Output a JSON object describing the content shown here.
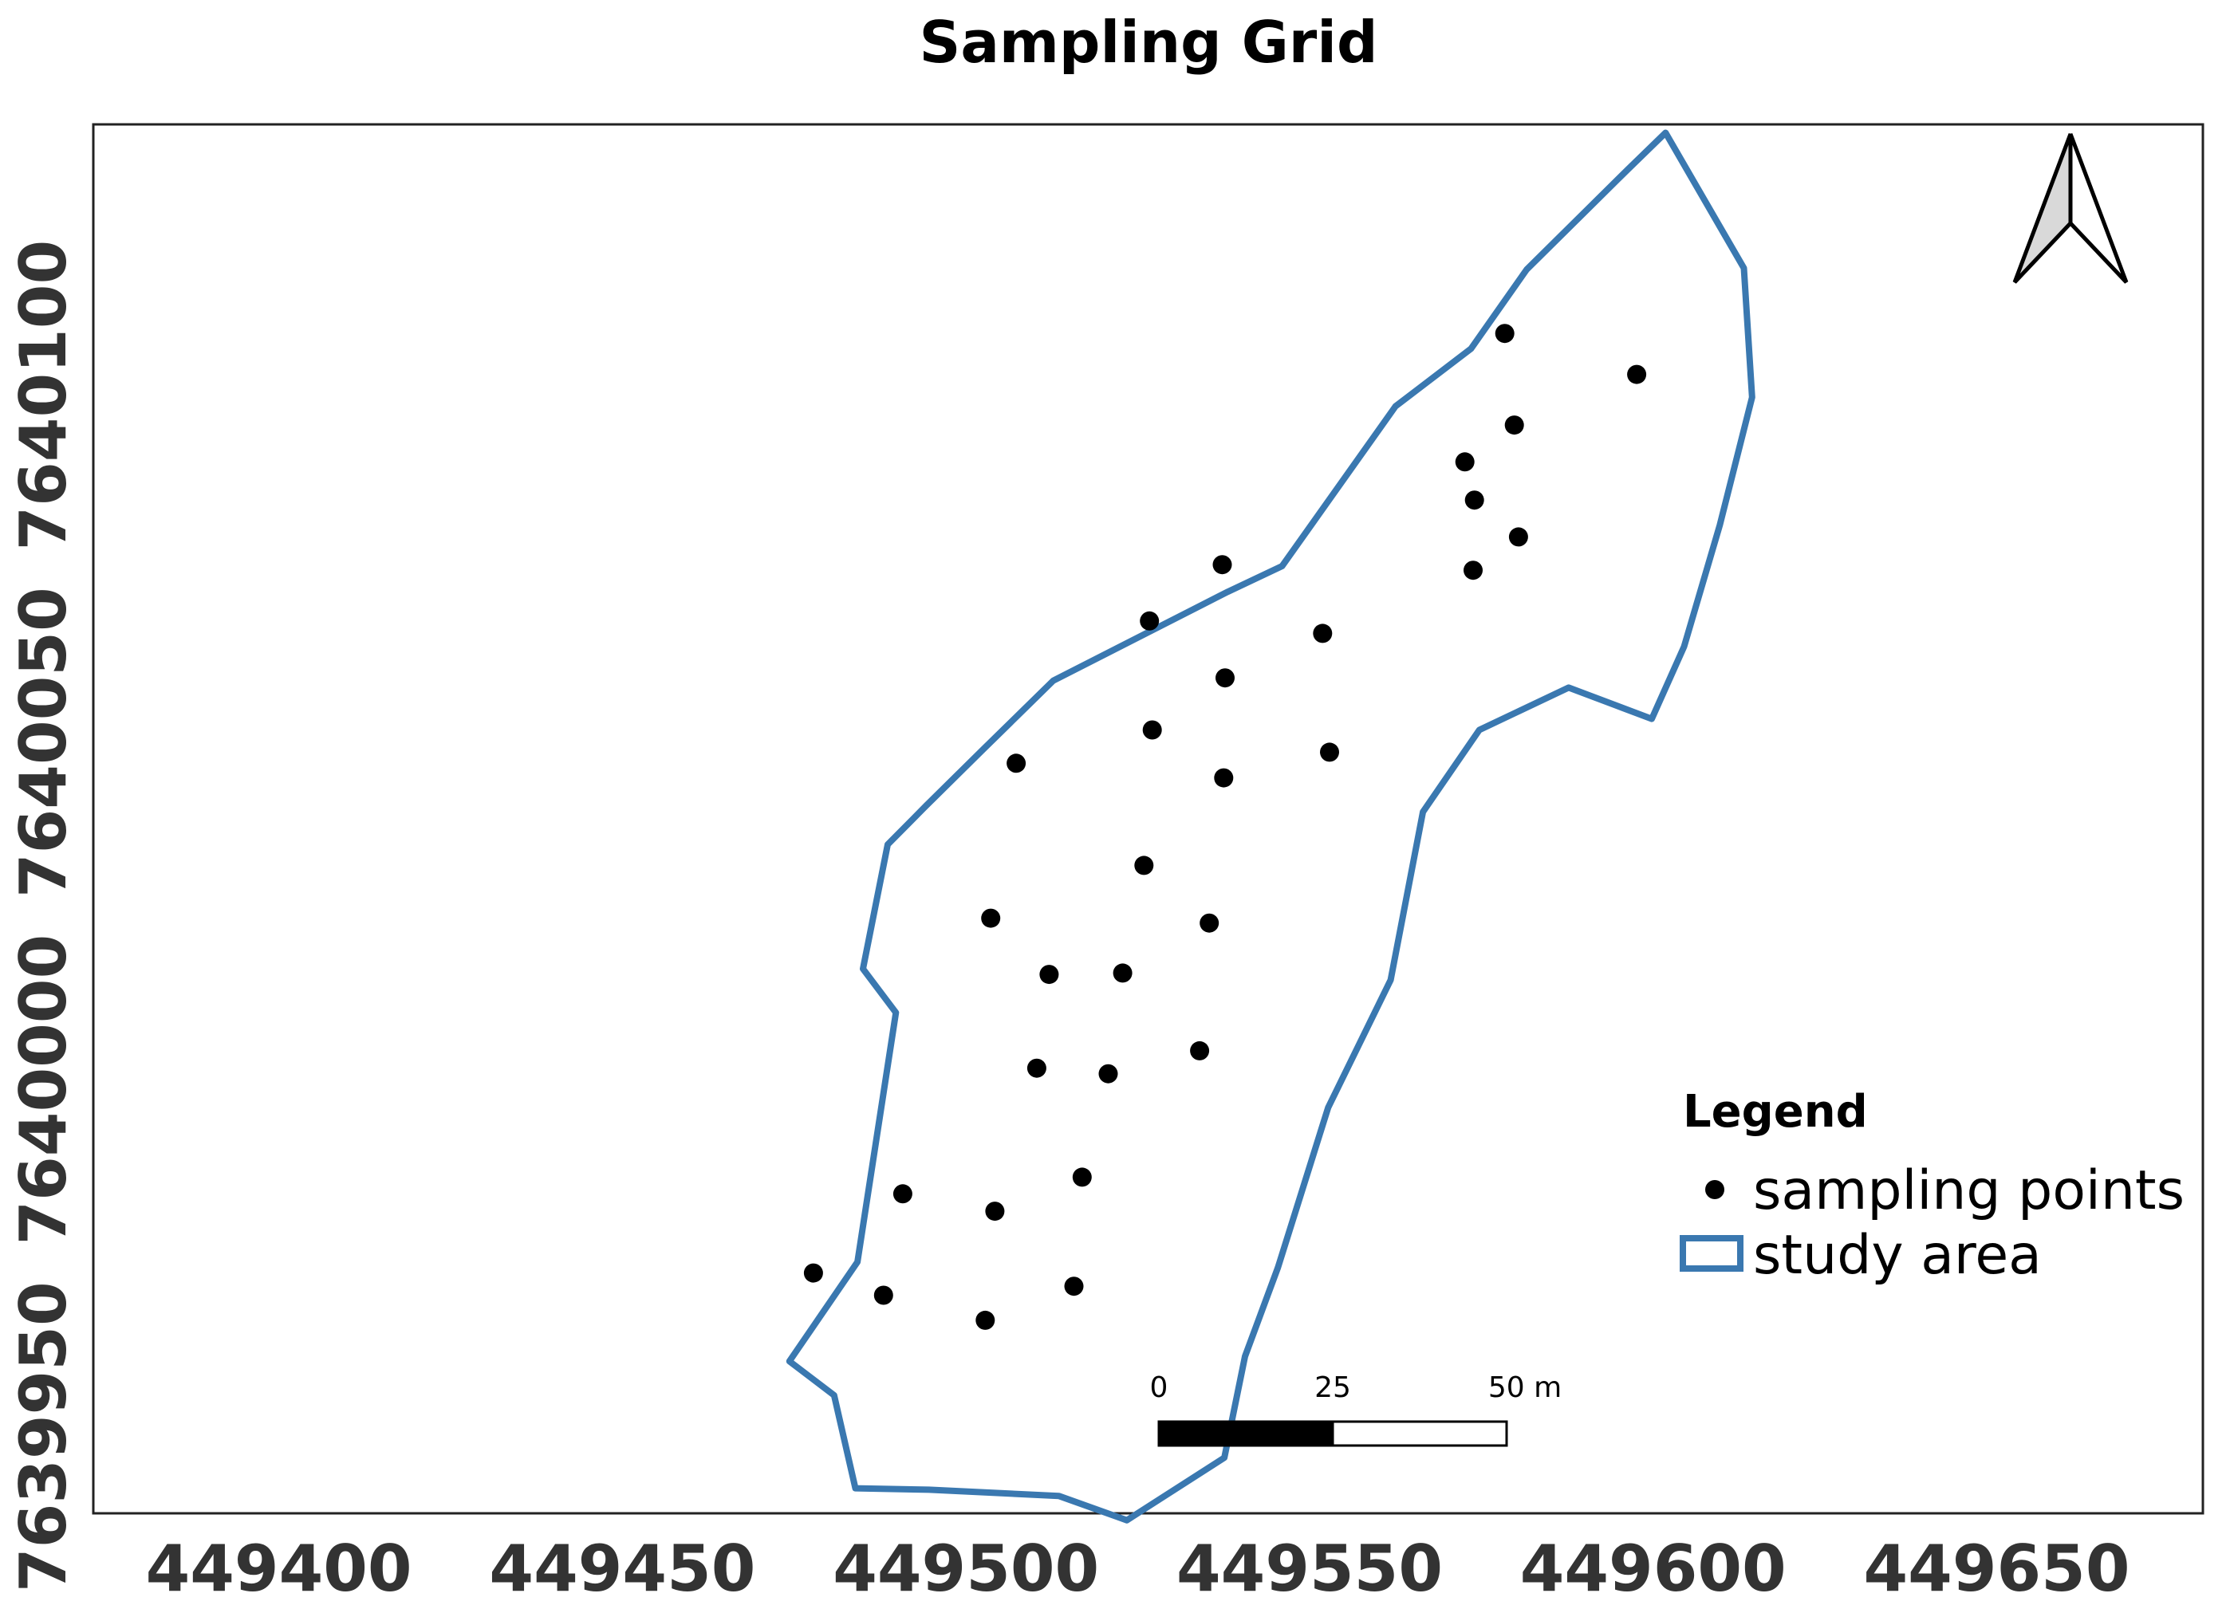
{
  "map": {
    "title": "Sampling Grid",
    "crs_extent": {
      "x_min": 449373,
      "x_max": 449680,
      "y_min": 7639939,
      "y_max": 7640139
    },
    "x_ticks": [
      {
        "value": 449400,
        "label": "449400"
      },
      {
        "value": 449450,
        "label": "449450"
      },
      {
        "value": 449500,
        "label": "449500"
      },
      {
        "value": 449550,
        "label": "449550"
      },
      {
        "value": 449600,
        "label": "449600"
      },
      {
        "value": 449650,
        "label": "449650"
      }
    ],
    "y_ticks": [
      {
        "value": 7639950,
        "label": "7639950"
      },
      {
        "value": 7640000,
        "label": "7640000"
      },
      {
        "value": 7640050,
        "label": "7640050"
      },
      {
        "value": 7640100,
        "label": "7640100"
      }
    ],
    "study_area": {
      "color": "#3a78b0",
      "boundary": [
        [
          449601.8,
          7640137.8
        ],
        [
          449613.2,
          7640118.3
        ],
        [
          449614.4,
          7640099.7
        ],
        [
          449609.7,
          7640081.3
        ],
        [
          449604.5,
          7640063.8
        ],
        [
          449599.8,
          7640053.4
        ],
        [
          449587.7,
          7640057.9
        ],
        [
          449574.7,
          7640051.8
        ],
        [
          449566.5,
          7640040.0
        ],
        [
          449561.8,
          7640015.8
        ],
        [
          449552.7,
          7639997.4
        ],
        [
          449545.4,
          7639974.4
        ],
        [
          449540.6,
          7639961.6
        ],
        [
          449537.6,
          7639947.0
        ],
        [
          449523.4,
          7639938.0
        ],
        [
          449513.5,
          7639941.5
        ],
        [
          449494.6,
          7639942.4
        ],
        [
          449483.9,
          7639942.6
        ],
        [
          449480.8,
          7639956.0
        ],
        [
          449474.3,
          7639960.9
        ],
        [
          449484.2,
          7639975.2
        ],
        [
          449489.8,
          7640011.1
        ],
        [
          449485.0,
          7640017.4
        ],
        [
          449488.6,
          7640035.3
        ],
        [
          449494.2,
          7640040.9
        ],
        [
          449502.5,
          7640049.0
        ],
        [
          449512.7,
          7640058.9
        ],
        [
          449538.1,
          7640071.7
        ],
        [
          449546.0,
          7640075.4
        ],
        [
          449562.5,
          7640098.4
        ],
        [
          449573.5,
          7640106.7
        ],
        [
          449581.6,
          7640118.1
        ],
        [
          449596.3,
          7640132.5
        ]
      ]
    },
    "sampling_points": {
      "color": "#000000",
      "points": [
        [
          449578.4,
          7640108.9
        ],
        [
          449597.6,
          7640103.0
        ],
        [
          449579.8,
          7640095.7
        ],
        [
          449572.6,
          7640090.4
        ],
        [
          449574.0,
          7640084.9
        ],
        [
          449580.4,
          7640079.6
        ],
        [
          449573.8,
          7640074.8
        ],
        [
          449537.3,
          7640075.6
        ],
        [
          449526.7,
          7640067.5
        ],
        [
          449551.9,
          7640065.7
        ],
        [
          449537.7,
          7640059.3
        ],
        [
          449527.1,
          7640051.8
        ],
        [
          449552.9,
          7640048.6
        ],
        [
          449507.3,
          7640047.0
        ],
        [
          449537.5,
          7640044.9
        ],
        [
          449525.9,
          7640032.3
        ],
        [
          449503.6,
          7640024.7
        ],
        [
          449535.4,
          7640024.0
        ],
        [
          449512.1,
          7640016.6
        ],
        [
          449522.8,
          7640016.8
        ],
        [
          449534.0,
          7640005.6
        ],
        [
          449510.3,
          7640003.1
        ],
        [
          449520.7,
          7640002.3
        ],
        [
          449516.9,
          7639987.4
        ],
        [
          449490.8,
          7639985.0
        ],
        [
          449504.2,
          7639982.5
        ],
        [
          449477.8,
          7639973.6
        ],
        [
          449488.0,
          7639970.4
        ],
        [
          449515.7,
          7639971.7
        ],
        [
          449502.8,
          7639966.8
        ]
      ]
    },
    "north_arrow": {
      "label": "north-arrow"
    },
    "scale_bar": {
      "length_m": 50,
      "segments": [
        {
          "from": 0,
          "to": 25,
          "color": "#000000"
        },
        {
          "from": 25,
          "to": 50,
          "color": "#ffffff"
        }
      ],
      "labels": [
        "0",
        "25",
        "50 m"
      ]
    },
    "legend": {
      "title": "Legend",
      "items": [
        {
          "label": "sampling points",
          "symbol": "point"
        },
        {
          "label": "study area",
          "symbol": "polygon"
        }
      ]
    }
  }
}
